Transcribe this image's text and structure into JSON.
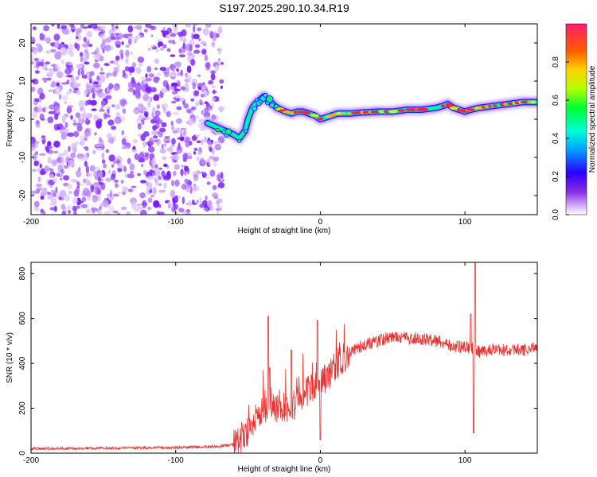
{
  "title": "S197.2025.290.10.34.R19",
  "colors": {
    "background": "#ffffff",
    "axis": "#000000",
    "snr_line": "#e8302f",
    "noise_speckle": "#8a3cff"
  },
  "chart_data": [
    {
      "type": "heatmap",
      "xlabel": "Height of straight line (km)",
      "ylabel": "Frequency (Hz)",
      "xlim": [
        -200,
        150
      ],
      "ylim": [
        -25,
        25
      ],
      "xticks": [
        -200,
        -100,
        0,
        100
      ],
      "xtick_labels": [
        "-200",
        "-100",
        "0",
        "100"
      ],
      "yticks": [
        -20,
        -10,
        0,
        10,
        20
      ],
      "ytick_labels": [
        "-20",
        "-10",
        "0",
        "10",
        "20"
      ],
      "noise_region_x": [
        -200,
        -68
      ],
      "ridge": {
        "x": [
          -78,
          -72,
          -66,
          -60,
          -56,
          -52,
          -50,
          -47,
          -45,
          -42,
          -39,
          -36,
          -33,
          -30,
          -27,
          -24,
          -20,
          -16,
          -12,
          -8,
          -4,
          0,
          4,
          8,
          12,
          20,
          30,
          40,
          50,
          60,
          70,
          80,
          85,
          88,
          92,
          96,
          100,
          104,
          110,
          120,
          130,
          140,
          150
        ],
        "freq": [
          -1,
          -2,
          -3,
          -4,
          -5,
          -3,
          0,
          3,
          4,
          5,
          6,
          5,
          4,
          3,
          2.5,
          2,
          1.5,
          2,
          2,
          1.5,
          1,
          0,
          0.5,
          1,
          1.5,
          1.5,
          1.8,
          2,
          2,
          2.5,
          2.5,
          3,
          3.5,
          4,
          3,
          2.5,
          2,
          2.5,
          3,
          3.5,
          4,
          4.5,
          4.5
        ]
      },
      "colorbar": {
        "label": "Normalized spectral amplitude",
        "range": [
          0,
          1
        ],
        "ticks": [
          0.0,
          0.2,
          0.4,
          0.6,
          0.8
        ],
        "tick_labels": [
          "0.0",
          "0.2",
          "0.4",
          "0.6",
          "0.8"
        ]
      }
    },
    {
      "type": "line",
      "xlabel": "Height of straight line (km)",
      "ylabel": "SNR (10 * v/v)",
      "xlim": [
        -200,
        150
      ],
      "ylim": [
        0,
        850
      ],
      "xticks": [
        -200,
        -100,
        0,
        100
      ],
      "xtick_labels": [
        "-200",
        "-100",
        "0",
        "100"
      ],
      "yticks": [
        0,
        200,
        400,
        600,
        800
      ],
      "ytick_labels": [
        "0",
        "200",
        "400",
        "600",
        "800"
      ],
      "series": [
        {
          "name": "SNR",
          "envelope_x": [
            -200,
            -150,
            -100,
            -70,
            -58,
            -50,
            -45,
            -40,
            -35,
            -30,
            -25,
            -20,
            -15,
            -10,
            -5,
            0,
            5,
            10,
            15,
            20,
            25,
            30,
            40,
            50,
            60,
            70,
            80,
            90,
            100,
            105,
            110,
            120,
            130,
            140,
            150
          ],
          "envelope_y": [
            20,
            22,
            25,
            30,
            40,
            90,
            150,
            200,
            230,
            200,
            210,
            200,
            240,
            280,
            300,
            330,
            340,
            390,
            410,
            450,
            470,
            480,
            500,
            520,
            510,
            510,
            500,
            480,
            470,
            470,
            450,
            465,
            455,
            460,
            470
          ],
          "spikes": [
            {
              "x": -36,
              "y": 610
            },
            {
              "x": -35,
              "y": 380
            },
            {
              "x": -20,
              "y": 460
            },
            {
              "x": -2,
              "y": 590
            },
            {
              "x": 0,
              "y": 60
            },
            {
              "x": 107,
              "y": 880
            },
            {
              "x": 106,
              "y": 90
            },
            {
              "x": 104,
              "y": 620
            }
          ]
        }
      ]
    }
  ]
}
